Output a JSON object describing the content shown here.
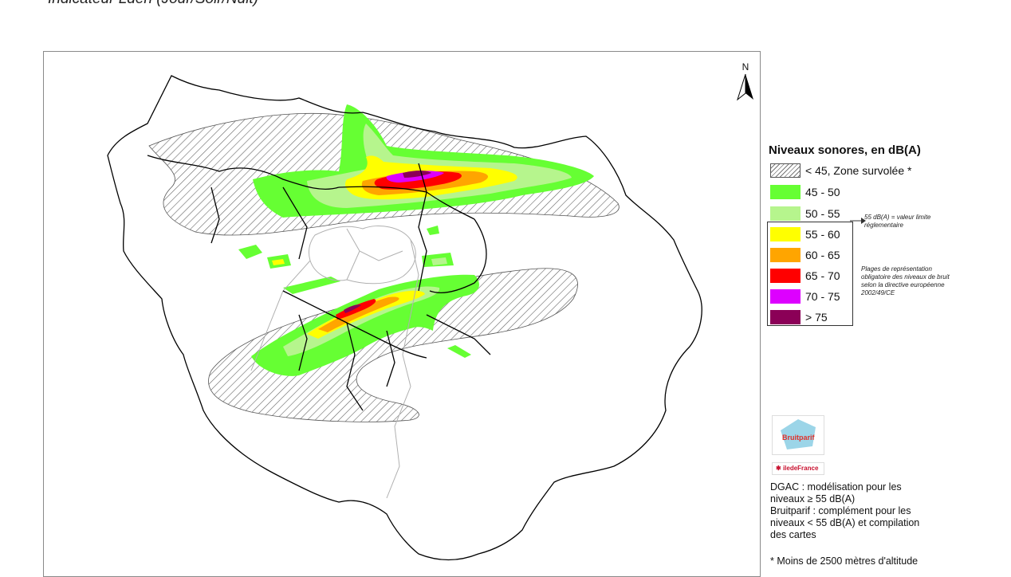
{
  "title": "Indicateur Lden (Jour/Soir/Nuit)",
  "map": {
    "north_label": "N",
    "colors": {
      "hatch": "#777777",
      "green_dark": "#66ff33",
      "green_light": "#b6f58d",
      "yellow": "#ffff00",
      "orange": "#ffa500",
      "red": "#ff0000",
      "violet": "#dd00ff",
      "purple": "#8b0057",
      "boundary": "#000000",
      "commune": "#b0b0b0"
    }
  },
  "legend": {
    "title": "Niveaux sonores, en dB(A)",
    "items": [
      {
        "label": "< 45, Zone survolée *",
        "color": "hatch"
      },
      {
        "label": "45 - 50",
        "color": "#66ff33"
      },
      {
        "label": "50 - 55",
        "color": "#b6f58d"
      },
      {
        "label": "55 - 60",
        "color": "#ffff00"
      },
      {
        "label": "60 - 65",
        "color": "#ffa500"
      },
      {
        "label": "65 - 70",
        "color": "#ff0000"
      },
      {
        "label": "70 - 75",
        "color": "#dd00ff"
      },
      {
        "label": "> 75",
        "color": "#8b0057"
      }
    ],
    "limit_note": "55 dB(A) = valeur limite réglementaire",
    "range_note": "Plages de représentation obligatoire des niveaux de bruit selon la directive européenne 2002/49/CE"
  },
  "logos": {
    "bruitparif": "Bruitparif",
    "iledefrance": "iledeFrance"
  },
  "credits": {
    "line1": "DGAC : modélisation pour les niveaux ≥ 55 dB(A)",
    "line2": "Bruitparif : complément pour les niveaux < 55 dB(A) et compilation des cartes"
  },
  "footnote": "* Moins de 2500 mètres d'altitude"
}
